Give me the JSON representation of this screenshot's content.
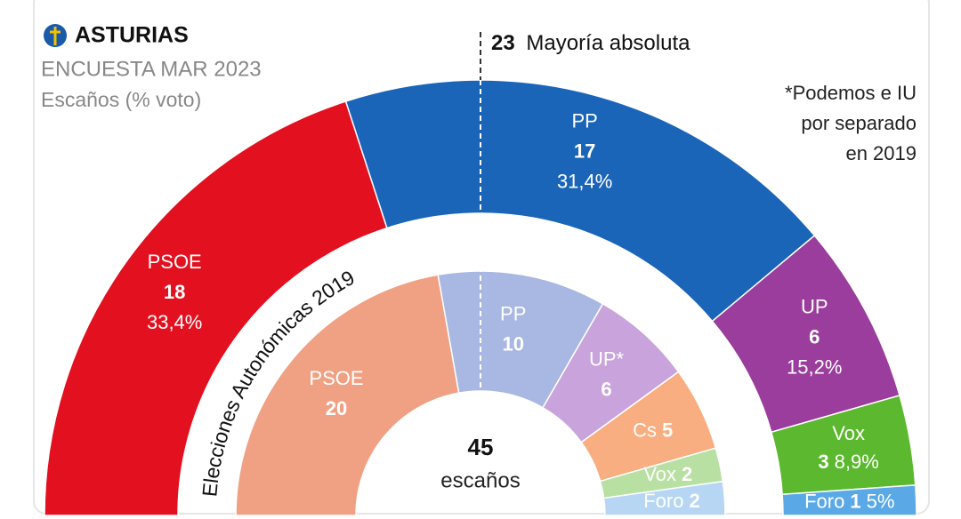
{
  "chart_data": {
    "type": "hemicycle",
    "title": "ASTURIAS",
    "subtitle": "ENCUESTA MAR 2023",
    "unit_label": "Escaños (% voto)",
    "majority": 23,
    "majority_label": "Mayoría absoluta",
    "note": [
      "*Podemos e IU",
      "por separado",
      "en 2019"
    ],
    "total": 45,
    "total_label": "escaños",
    "series": [
      {
        "categories": [
          "PSOE",
          "PP",
          "UP",
          "Vox",
          "Foro"
        ],
        "values": [
          18,
          17,
          6,
          3,
          1
        ],
        "percent": [
          33.4,
          31.4,
          15.2,
          8.9,
          5
        ],
        "percent_labels": [
          "33,4%",
          "31,4%",
          "15,2%",
          "8,9%",
          "5%"
        ],
        "colors": [
          "#e3101f",
          "#1b65b9",
          "#9a3d9c",
          "#5cb82e",
          "#5aa9e6"
        ]
      },
      {
        "name": "Elecciones Autonómicas 2019",
        "categories": [
          "PSOE",
          "PP",
          "UP*",
          "Cs",
          "Vox",
          "Foro"
        ],
        "values": [
          20,
          10,
          6,
          5,
          2,
          2
        ],
        "colors": [
          "#f0a184",
          "#a9b7e3",
          "#c9a3dc",
          "#f8ae80",
          "#b8e0a2",
          "#b6d6f3"
        ]
      }
    ]
  }
}
